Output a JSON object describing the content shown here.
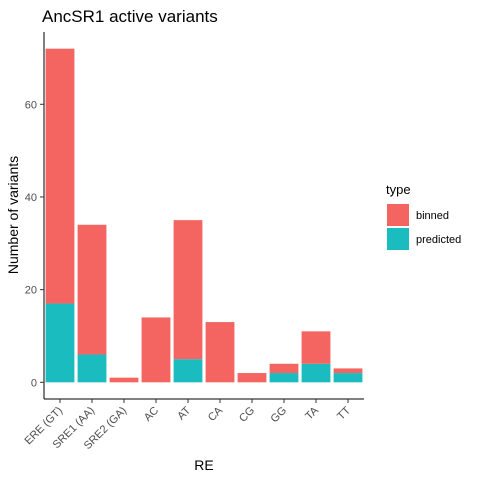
{
  "chart_data": {
    "type": "bar",
    "stacked": true,
    "title": "AncSR1 active variants",
    "xlabel": "RE",
    "ylabel": "Number of variants",
    "categories": [
      "ERE (GT)",
      "SRE1 (AA)",
      "SRE2 (GA)",
      "AC",
      "AT",
      "CA",
      "CG",
      "GG",
      "TA",
      "TT"
    ],
    "series": [
      {
        "name": "predicted",
        "color": "#1ABCBF",
        "values": [
          17,
          6,
          0,
          0,
          5,
          0,
          0,
          2,
          4,
          2
        ]
      },
      {
        "name": "binned",
        "color": "#F46461",
        "values": [
          55,
          28,
          1,
          14,
          30,
          13,
          2,
          2,
          7,
          1
        ]
      }
    ],
    "ylim": [
      -3.6,
      75.6
    ],
    "yticks": [
      0,
      20,
      40,
      60
    ],
    "legend": {
      "title": "type",
      "placement": "right",
      "entries": [
        {
          "label": "binned",
          "color": "#F46461"
        },
        {
          "label": "predicted",
          "color": "#1ABCBF"
        }
      ]
    },
    "grid": false
  }
}
